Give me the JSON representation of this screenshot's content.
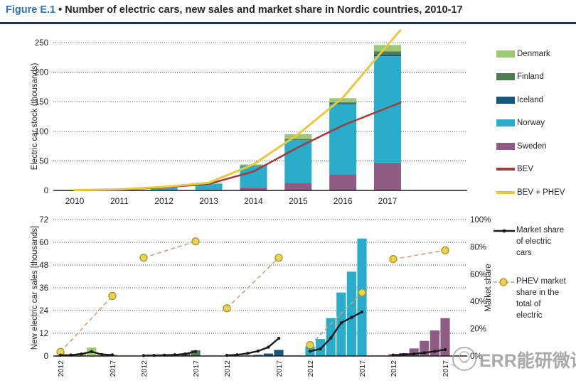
{
  "header": {
    "figure_label": "Figure E.1",
    "bullet": "•",
    "title": "Number of electric cars, new sales and market share in Nordic countries, 2010-17"
  },
  "colors": {
    "figure_blue": "#2E74A4",
    "rule_navy": "#17365D",
    "denmark": "#9CC873",
    "finland": "#4E7B52",
    "iceland": "#17577C",
    "norway": "#29ADCB",
    "sweden": "#8E5C84",
    "bev_red": "#A23B3E",
    "phev_yellow": "#E8C93E",
    "dashed_tan": "#C9A285",
    "dot_yellow_fill": "#E8D44D",
    "dot_yellow_stroke": "#A8922E",
    "line_black": "#1A1A1A",
    "grid": "#4D4D4D",
    "text": "#262626"
  },
  "watermark": {
    "text": "ERR能研微讯"
  },
  "chart_data": [
    {
      "type": "bar",
      "subtype": "stacked-bars-with-lines",
      "title": "",
      "ylabel": "Electric car stock (thousands)",
      "categories": [
        "2010",
        "2011",
        "2012",
        "2013",
        "2014",
        "2015",
        "2016",
        "2017"
      ],
      "yticks": [
        0,
        50,
        100,
        150,
        200,
        250
      ],
      "ylim": [
        0,
        250
      ],
      "grid": "dotted-horizontal",
      "legend_position": "right",
      "series": [
        {
          "name": "Sweden",
          "colorKey": "sweden",
          "values": [
            0.1,
            0.3,
            0.7,
            1.5,
            5,
            13,
            27,
            47
          ]
        },
        {
          "name": "Norway",
          "colorKey": "norway",
          "values": [
            0.3,
            1.3,
            4.5,
            10,
            36,
            72,
            119,
            180
          ]
        },
        {
          "name": "Iceland",
          "colorKey": "iceland",
          "values": [
            0.02,
            0.05,
            0.1,
            0.2,
            0.4,
            0.8,
            1.5,
            3
          ]
        },
        {
          "name": "Finland",
          "colorKey": "finland",
          "values": [
            0.02,
            0.05,
            0.2,
            0.3,
            0.6,
            1.2,
            1.5,
            5
          ]
        },
        {
          "name": "Denmark",
          "colorKey": "denmark",
          "values": [
            0.06,
            0.3,
            0.5,
            1,
            2,
            8,
            7,
            11
          ]
        }
      ],
      "lines": [
        {
          "name": "BEV",
          "colorKey": "bev_red",
          "width": 2.5,
          "values": [
            0.3,
            1.5,
            5,
            11,
            32,
            73,
            110,
            140
          ]
        },
        {
          "name": "BEV + PHEV",
          "colorKey": "phev_yellow",
          "width": 3,
          "values": [
            0.5,
            2,
            6,
            13,
            44,
            95,
            157,
            246
          ]
        }
      ],
      "legend_order": [
        "Denmark",
        "Finland",
        "Iceland",
        "Norway",
        "Sweden",
        "BEV",
        "BEV + PHEV"
      ]
    },
    {
      "type": "bar",
      "subtype": "small-multiples-with-share-lines",
      "ylabel": "New electric car sales [thousands]",
      "ylabel_right": "Market share",
      "years": [
        "2012",
        "2013",
        "2014",
        "2015",
        "2016",
        "2017"
      ],
      "x_tick_labels_shown": [
        "2012",
        "2017"
      ],
      "yticks_left": [
        0,
        12,
        24,
        36,
        48,
        60,
        72
      ],
      "ylim_left": [
        0,
        72
      ],
      "yticks_right": [
        "0%",
        "20%",
        "40%",
        "60%",
        "80%",
        "100%"
      ],
      "ylim_right": [
        0,
        100
      ],
      "grid": "dotted-horizontal",
      "groups": [
        {
          "name": "Denmark",
          "colorKey": "denmark",
          "sales": [
            0.5,
            0.6,
            1.5,
            4.4,
            1.3,
            0.8
          ],
          "market_share_pct": [
            0.6,
            0.7,
            1.4,
            3.2,
            1.1,
            0.8
          ],
          "phev_share_pct_2012_2017": [
            3,
            44
          ]
        },
        {
          "name": "Finland",
          "colorKey": "finland",
          "sales": [
            0.2,
            0.25,
            0.45,
            0.8,
            1.3,
            3
          ],
          "market_share_pct": [
            0.3,
            0.4,
            0.6,
            0.9,
            1.5,
            3.3
          ],
          "phev_share_pct_2012_2017": [
            72,
            84
          ]
        },
        {
          "name": "Iceland",
          "colorKey": "iceland",
          "sales": [
            0.05,
            0.1,
            0.25,
            0.6,
            1.3,
            3.2
          ],
          "market_share_pct": [
            0.5,
            0.9,
            1.9,
            3.6,
            6.5,
            13
          ],
          "phev_share_pct_2012_2017": [
            35,
            72
          ]
        },
        {
          "name": "Norway",
          "colorKey": "norway",
          "sales": [
            5,
            9,
            20,
            33.5,
            44.5,
            62
          ],
          "market_share_pct": [
            3.5,
            5.2,
            13.2,
            24.3,
            28.3,
            32.3
          ],
          "phev_share_pct_2012_2017": [
            8,
            46.5
          ]
        },
        {
          "name": "Sweden",
          "colorKey": "sweden",
          "sales": [
            1,
            1.5,
            4,
            8,
            13.5,
            20
          ],
          "market_share_pct": [
            0.7,
            1,
            1.5,
            2.4,
            3.4,
            4.7
          ],
          "phev_share_pct_2012_2017": [
            71,
            77.5
          ]
        }
      ],
      "legend": [
        {
          "label": "Market share of electric cars",
          "marker": "black-line-dot"
        },
        {
          "label": "PHEV market share in the total of electric",
          "marker": "tan-dashed-yellow-dot"
        }
      ]
    }
  ]
}
